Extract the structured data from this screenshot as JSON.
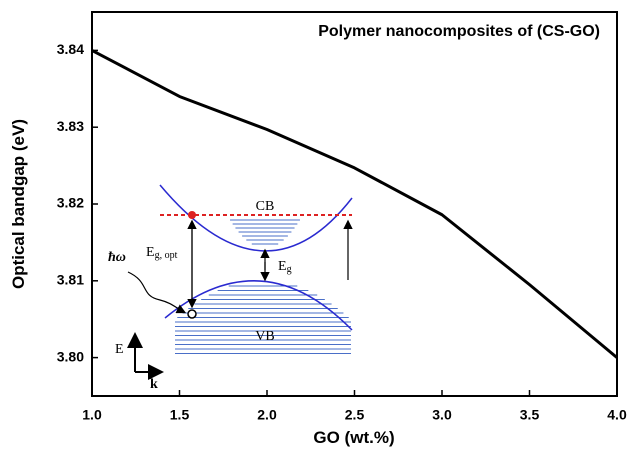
{
  "chart_data": {
    "type": "line",
    "title": "Polymer nanocomposites of (CS-GO)",
    "x_label": "GO (wt.%)",
    "y_label": "Optical bandgap (eV)",
    "x": [
      1.0,
      1.5,
      2.0,
      2.5,
      3.0,
      3.5,
      4.0
    ],
    "values": [
      3.84,
      3.834,
      3.8297,
      3.8247,
      3.8186,
      3.8095,
      3.8
    ],
    "color": "#000000",
    "xlim": [
      1.0,
      4.0
    ],
    "ylim": [
      3.795,
      3.845
    ],
    "xticks": [
      {
        "value": 1.0,
        "label": "1.0"
      },
      {
        "value": 1.5,
        "label": "1.5"
      },
      {
        "value": 2.0,
        "label": "2.0"
      },
      {
        "value": 2.5,
        "label": "2.5"
      },
      {
        "value": 3.0,
        "label": "3.0"
      },
      {
        "value": 3.5,
        "label": "3.5"
      },
      {
        "value": 4.0,
        "label": "4.0"
      }
    ],
    "yticks": [
      {
        "value": 3.8,
        "label": "3.80"
      },
      {
        "value": 3.81,
        "label": "3.81"
      },
      {
        "value": 3.82,
        "label": "3.82"
      },
      3.83,
      3.84
    ],
    "grid": false,
    "inset": {
      "cb": "CB",
      "vb": "VB",
      "eg_opt": "E",
      "eg_opt_sub": "g, opt",
      "eg": "E",
      "eg_sub": "g",
      "photon": "ħω",
      "energy_axis": "E",
      "k_axis": "k"
    }
  }
}
